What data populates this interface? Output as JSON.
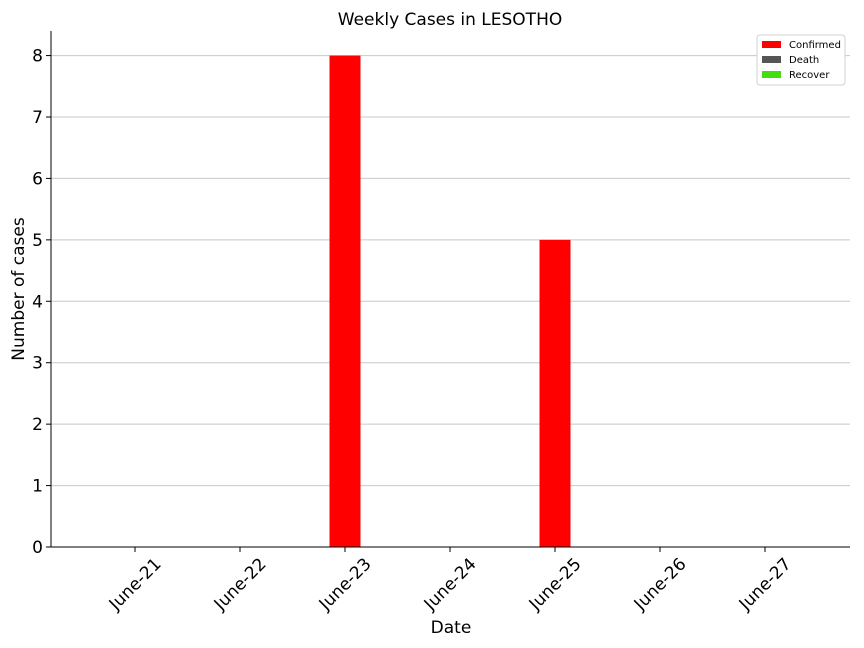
{
  "chart_data": {
    "type": "bar",
    "title": "Weekly Cases in LESOTHO",
    "xlabel": "Date",
    "ylabel": "Number of cases",
    "categories": [
      "June-21",
      "June-22",
      "June-23",
      "June-24",
      "June-25",
      "June-26",
      "June-27"
    ],
    "series": [
      {
        "name": "Confirmed",
        "color": "#ff0000",
        "values": [
          0,
          0,
          8,
          0,
          5,
          0,
          0
        ]
      },
      {
        "name": "Death",
        "color": "#555555",
        "values": [
          0,
          0,
          0,
          0,
          0,
          0,
          0
        ]
      },
      {
        "name": "Recover",
        "color": "#44dd11",
        "values": [
          0,
          0,
          0,
          0,
          0,
          0,
          0
        ]
      }
    ],
    "ylim": [
      0,
      8.4
    ],
    "yticks": [
      0,
      1,
      2,
      3,
      4,
      5,
      6,
      7,
      8
    ],
    "grid": "horizontal",
    "legend_position": "top-right"
  }
}
